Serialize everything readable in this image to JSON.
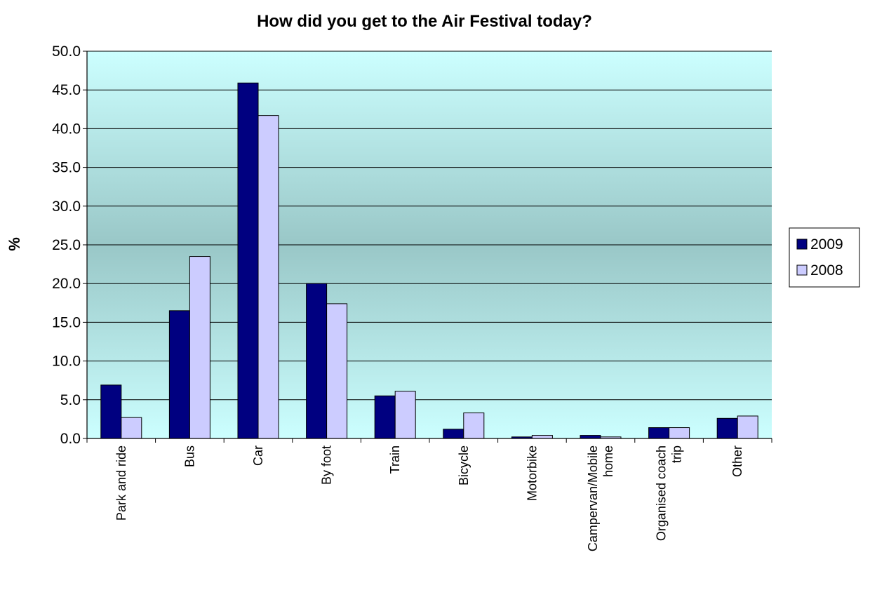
{
  "chart_data": {
    "type": "bar",
    "title": "How did you get to the Air Festival today?",
    "ylabel": "%",
    "xlabel": "",
    "ylim": [
      0,
      50
    ],
    "yticks": [
      "0.0",
      "5.0",
      "10.0",
      "15.0",
      "20.0",
      "25.0",
      "30.0",
      "35.0",
      "40.0",
      "45.0",
      "50.0"
    ],
    "grid": true,
    "legend_position": "right",
    "categories": [
      [
        "Park and ride"
      ],
      [
        "Bus"
      ],
      [
        "Car"
      ],
      [
        "By foot"
      ],
      [
        "Train"
      ],
      [
        "Bicycle"
      ],
      [
        "Motorbike"
      ],
      [
        "Campervan/Mobile",
        "home"
      ],
      [
        "Organised coach",
        "trip"
      ],
      [
        "Other"
      ]
    ],
    "series": [
      {
        "name": "2009",
        "color": "#000080",
        "values": [
          6.9,
          16.5,
          45.9,
          20.0,
          5.5,
          1.2,
          0.2,
          0.4,
          1.4,
          2.6
        ]
      },
      {
        "name": "2008",
        "color": "#ccccff",
        "values": [
          2.7,
          23.5,
          41.7,
          17.4,
          6.1,
          3.3,
          0.4,
          0.2,
          1.4,
          2.9
        ]
      }
    ],
    "background_gradient": [
      "#ccffff",
      "#99c7c7"
    ]
  }
}
